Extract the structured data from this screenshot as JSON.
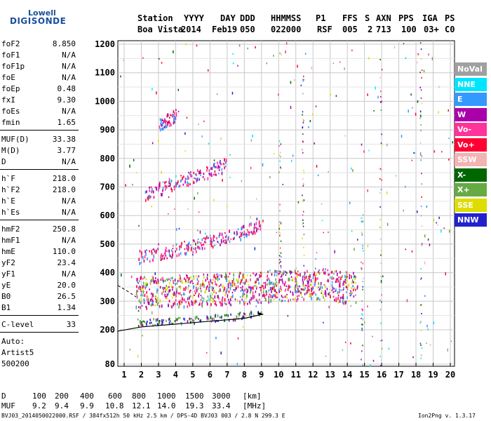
{
  "logo": {
    "line1": "Lowell",
    "line2": "DIGISONDE"
  },
  "header": {
    "row1": [
      "Station",
      "YYYY",
      "DAY",
      "DDD",
      "HHMMSS",
      "P1",
      "FFS",
      "S",
      "AXN",
      "PPS",
      "IGA",
      "PS"
    ],
    "row2": [
      "Boa Vista",
      "2014",
      "Feb19",
      "050",
      "022000",
      "RSF",
      "005",
      "2",
      "713",
      "100",
      "03+",
      "C0"
    ]
  },
  "params": {
    "group1": [
      {
        "label": "foF2",
        "value": "8.850"
      },
      {
        "label": "foF1",
        "value": "N/A"
      },
      {
        "label": "foF1p",
        "value": "N/A"
      },
      {
        "label": "foE",
        "value": "N/A"
      },
      {
        "label": "foEp",
        "value": "0.48"
      },
      {
        "label": "fxI",
        "value": "9.30"
      },
      {
        "label": "foEs",
        "value": "N/A"
      },
      {
        "label": "fmin",
        "value": "1.65"
      }
    ],
    "group2": [
      {
        "label": "MUF(D)",
        "value": "33.38"
      },
      {
        "label": "M(D)",
        "value": "3.77"
      },
      {
        "label": "D",
        "value": "N/A"
      }
    ],
    "group3": [
      {
        "label": "h`F",
        "value": "218.0"
      },
      {
        "label": "h`F2",
        "value": "218.0"
      },
      {
        "label": "h`E",
        "value": "N/A"
      },
      {
        "label": "h`Es",
        "value": "N/A"
      }
    ],
    "group4": [
      {
        "label": "hmF2",
        "value": "250.8"
      },
      {
        "label": "hmF1",
        "value": "N/A"
      },
      {
        "label": "hmE",
        "value": "110.0"
      },
      {
        "label": "yF2",
        "value": "23.4"
      },
      {
        "label": "yF1",
        "value": "N/A"
      },
      {
        "label": "yE",
        "value": "20.0"
      },
      {
        "label": "B0",
        "value": "26.5"
      },
      {
        "label": "B1",
        "value": "1.34"
      }
    ],
    "group5": [
      {
        "label": "C-level",
        "value": "33"
      }
    ],
    "auto": [
      "Auto:",
      "Artist5",
      "500200"
    ]
  },
  "legend": [
    {
      "label": "NoVal",
      "bg": "#a0a0a0",
      "fg": "#ffffff"
    },
    {
      "label": "NNE",
      "bg": "#00e5ff",
      "fg": "#ffffff"
    },
    {
      "label": "E",
      "bg": "#3399ff",
      "fg": "#ffffff"
    },
    {
      "label": "W",
      "bg": "#aa00aa",
      "fg": "#ffffff"
    },
    {
      "label": "Vo-",
      "bg": "#ff3399",
      "fg": "#ffffff"
    },
    {
      "label": "Vo+",
      "bg": "#ff0033",
      "fg": "#ffffff"
    },
    {
      "label": "SSW",
      "bg": "#f2b3b3",
      "fg": "#ffffff"
    },
    {
      "label": "X-",
      "bg": "#006600",
      "fg": "#ffffff"
    },
    {
      "label": "X+",
      "bg": "#66aa44",
      "fg": "#ffffff"
    },
    {
      "label": "SSE",
      "bg": "#dddd00",
      "fg": "#ffffff"
    },
    {
      "label": "NNW",
      "bg": "#2222cc",
      "fg": "#ffffff"
    }
  ],
  "muf_table": {
    "d_label": "D",
    "d_values": [
      "100",
      "200",
      "400",
      "600",
      "800",
      "1000",
      "1500",
      "3000"
    ],
    "d_unit": "[km]",
    "muf_label": "MUF",
    "muf_values": [
      "9.2",
      "9.4",
      "9.9",
      "10.8",
      "12.1",
      "14.0",
      "19.3",
      "33.4"
    ],
    "muf_unit": "[MHz]"
  },
  "footer": {
    "left": "BVJ03_2014050022000.RSF / 384fx512h 50 kHz 2.5 km / DPS-4D BVJ03 003 / 2.8 N 299.3 E",
    "right": "Ion2Png v. 1.3.17"
  },
  "chart_data": {
    "type": "scatter",
    "xlabel": "",
    "ylabel": "",
    "xlim": [
      0.5,
      20.1
    ],
    "ylim": [
      80,
      1210
    ],
    "x_ticks": [
      1,
      2,
      3,
      4,
      5,
      6,
      7,
      8,
      9,
      10,
      11,
      12,
      13,
      14,
      15,
      16,
      17,
      18,
      19,
      20
    ],
    "y_ticks": [
      80,
      200,
      300,
      400,
      500,
      600,
      700,
      800,
      900,
      1000,
      1100,
      1200
    ],
    "grid": true,
    "traces": [
      {
        "name": "O-trace 1st hop",
        "color": "#aa00aa",
        "x": [
          1.6,
          2.5,
          3.5,
          4.5,
          5.5,
          6.5,
          7.5,
          8.5,
          9.5,
          10.5,
          11.5,
          12.5,
          13.5,
          14.5
        ],
        "y": [
          300,
          302,
          305,
          308,
          310,
          312,
          315,
          318,
          322,
          325,
          328,
          330,
          320,
          315
        ]
      },
      {
        "name": "low trace",
        "color": "#006600",
        "x": [
          1.7,
          3,
          5,
          7,
          9
        ],
        "y": [
          220,
          225,
          230,
          240,
          255
        ]
      },
      {
        "name": "2nd hop",
        "color": "#ff3399",
        "x": [
          1.8,
          3,
          4,
          5,
          6,
          7,
          8,
          8.9
        ],
        "y": [
          445,
          455,
          470,
          485,
          500,
          515,
          535,
          555
        ]
      },
      {
        "name": "3rd hop",
        "color": "#ff3399",
        "x": [
          2.2,
          3,
          4,
          5,
          6,
          6.9
        ],
        "y": [
          665,
          685,
          705,
          725,
          745,
          770
        ]
      },
      {
        "name": "4th hop",
        "color": "#aa00aa",
        "x": [
          3,
          3.5,
          4
        ],
        "y": [
          910,
          925,
          940
        ]
      }
    ],
    "profile_curve": {
      "x": [
        0.6,
        2,
        4,
        6,
        8,
        9.1
      ],
      "y": [
        195,
        210,
        220,
        230,
        240,
        255
      ]
    },
    "dashed_curve": {
      "x": [
        0.5,
        1.2,
        1.7
      ],
      "y": [
        355,
        335,
        315
      ]
    }
  }
}
